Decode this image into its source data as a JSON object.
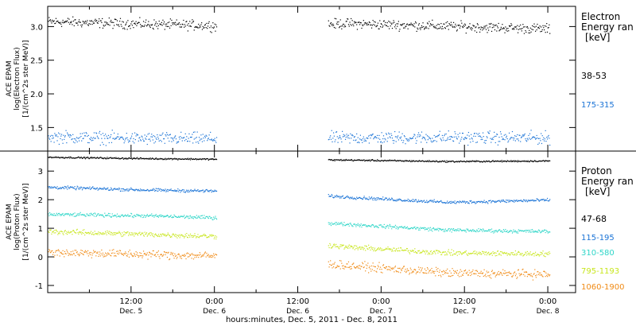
{
  "chart_data": [
    {
      "type": "scatter",
      "ylabel": [
        "ACE EPAM",
        "log(Electron Flux)",
        "[1/(cm^2s ster MeV)]"
      ],
      "ylim": [
        1.15,
        3.3
      ],
      "yticks": [
        "3.0",
        "2.5",
        "2.0",
        "1.5"
      ],
      "ytick_values": [
        3.0,
        2.5,
        2.0,
        1.5
      ],
      "legend_title": [
        "Electron",
        "Energy ran",
        "[keV]"
      ],
      "series": [
        {
          "name": "38-53",
          "color": "#000000",
          "baseline": 3.02,
          "spread": 0.04,
          "segment_levels": [
            3.08,
            3.04,
            3.01,
            3.05,
            3.01,
            2.97
          ]
        },
        {
          "name": "175-315",
          "color": "#1a73d6",
          "baseline": 1.35,
          "spread": 0.05,
          "segment_levels": [
            1.37,
            1.34,
            1.34,
            1.35,
            1.36,
            1.35
          ]
        }
      ]
    },
    {
      "type": "scatter",
      "ylabel": [
        "ACE EPAM",
        "log(Proton Flux)",
        "[1/(cm^2s ster MeV)]"
      ],
      "ylim": [
        -1.25,
        3.7
      ],
      "yticks": [
        "3",
        "2",
        "1",
        "0",
        "-1"
      ],
      "ytick_values": [
        3,
        2,
        1,
        0,
        -1
      ],
      "legend_title": [
        "Proton",
        "Energy ran",
        "[keV]"
      ],
      "series": [
        {
          "name": "47-68",
          "color": "#000000",
          "baseline": 3.45,
          "spread": 0.015,
          "segment_levels": [
            3.5,
            3.45,
            3.42,
            3.4,
            3.35,
            3.37
          ]
        },
        {
          "name": "115-195",
          "color": "#1a73d6",
          "baseline": 2.3,
          "spread": 0.03,
          "segment_levels": [
            2.45,
            2.35,
            2.3,
            2.1,
            1.92,
            2.0
          ]
        },
        {
          "name": "310-580",
          "color": "#2fd6c8",
          "baseline": 1.4,
          "spread": 0.035,
          "segment_levels": [
            1.5,
            1.45,
            1.35,
            1.15,
            0.95,
            0.9
          ]
        },
        {
          "name": "795-1193",
          "color": "#c8e61e",
          "baseline": 0.8,
          "spread": 0.05,
          "segment_levels": [
            0.9,
            0.8,
            0.7,
            0.35,
            0.15,
            0.12
          ]
        },
        {
          "name": "1060-1900",
          "color": "#f08a14",
          "baseline": 0.1,
          "spread": 0.08,
          "segment_levels": [
            0.18,
            0.1,
            0.02,
            -0.3,
            -0.55,
            -0.6
          ]
        }
      ]
    }
  ],
  "x_axis": {
    "xlabel": "hours:minutes, Dec.  5, 2011 - Dec.  8, 2011",
    "ticks": [
      {
        "top": "12:00",
        "bottom": "Dec. 5"
      },
      {
        "top": "0:00",
        "bottom": "Dec. 6"
      },
      {
        "top": "12:00",
        "bottom": "Dec. 6"
      },
      {
        "top": "0:00",
        "bottom": "Dec. 7"
      },
      {
        "top": "12:00",
        "bottom": "Dec. 7"
      },
      {
        "top": "0:00",
        "bottom": "Dec. 8"
      }
    ],
    "range_hours": [
      0,
      76
    ],
    "tick_hours": [
      12,
      24,
      36,
      48,
      60,
      72
    ],
    "data_gaps": [
      [
        24.3,
        40.3
      ],
      [
        72.3,
        76
      ]
    ]
  }
}
